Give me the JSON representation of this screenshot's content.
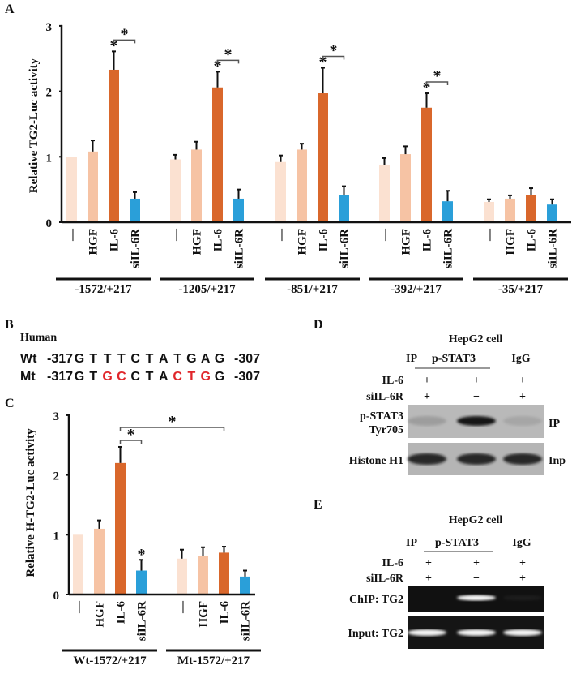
{
  "panels": {
    "a": "A",
    "b": "B",
    "c": "C",
    "d": "D",
    "e": "E"
  },
  "colors": {
    "control": "#fbe1d1",
    "hgf": "#f6c3a4",
    "il6": "#d9672b",
    "siil6r": "#2a9fd9",
    "mutation": "#e0262b"
  },
  "chart_data": [
    {
      "id": "A",
      "type": "bar",
      "ylabel": "Relative TG2-Luc activity",
      "ylim": [
        0,
        3
      ],
      "yticks": [
        "0",
        "1",
        "2",
        "3"
      ],
      "categories": [
        "—",
        "HGF",
        "IL-6",
        "siIL-6R"
      ],
      "groups": [
        {
          "name": "-1572/+217",
          "values": [
            1.0,
            1.08,
            2.33,
            0.36
          ],
          "errors": [
            0,
            0.17,
            0.28,
            0.1
          ]
        },
        {
          "name": "-1205/+217",
          "values": [
            0.96,
            1.11,
            2.06,
            0.36
          ],
          "errors": [
            0.07,
            0.12,
            0.24,
            0.14
          ]
        },
        {
          "name": "-851/+217",
          "values": [
            0.92,
            1.11,
            1.97,
            0.41
          ],
          "errors": [
            0.1,
            0.09,
            0.39,
            0.14
          ]
        },
        {
          "name": "-392/+217",
          "values": [
            0.88,
            1.04,
            1.75,
            0.32
          ],
          "errors": [
            0.1,
            0.12,
            0.22,
            0.16
          ]
        },
        {
          "name": "-35/+217",
          "values": [
            0.31,
            0.36,
            0.41,
            0.27
          ],
          "errors": [
            0.04,
            0.05,
            0.11,
            0.08
          ]
        }
      ],
      "significance": "*"
    },
    {
      "id": "C",
      "type": "bar",
      "ylabel": "Relative H-TG2-Luc activity",
      "ylim": [
        0,
        3
      ],
      "yticks": [
        "0",
        "1",
        "2",
        "3"
      ],
      "categories": [
        "—",
        "HGF",
        "IL-6",
        "siIL-6R"
      ],
      "groups": [
        {
          "name": "Wt-1572/+217",
          "values": [
            1.0,
            1.1,
            2.2,
            0.4
          ],
          "errors": [
            0,
            0.14,
            0.27,
            0.18
          ]
        },
        {
          "name": "Mt-1572/+217",
          "values": [
            0.6,
            0.65,
            0.7,
            0.3
          ],
          "errors": [
            0.15,
            0.14,
            0.1,
            0.1
          ]
        }
      ],
      "significance": "*"
    }
  ],
  "sequence": {
    "species": "Human",
    "start": "-317",
    "end": "-307",
    "rows": [
      {
        "label": "Wt",
        "bases": [
          "G",
          "T",
          "T",
          "T",
          "C",
          "T",
          "A",
          "T",
          "G",
          "A",
          "G"
        ],
        "mutated": [
          false,
          false,
          false,
          false,
          false,
          false,
          false,
          false,
          false,
          false,
          false
        ]
      },
      {
        "label": "Mt",
        "bases": [
          "G",
          "T",
          "G",
          "C",
          "C",
          "T",
          "A",
          "C",
          "T",
          "G",
          "G"
        ],
        "mutated": [
          false,
          false,
          true,
          true,
          false,
          false,
          false,
          true,
          true,
          true,
          false
        ]
      }
    ]
  },
  "blot_d": {
    "title": "HepG2 cell",
    "ip_label": "IP",
    "ip_antibody": "p-STAT3",
    "igg": "IgG",
    "rows": [
      {
        "label": "IL-6",
        "signs": [
          "+",
          "+",
          "+"
        ]
      },
      {
        "label": "siIL-6R",
        "signs": [
          "+",
          "−",
          "+"
        ]
      }
    ],
    "band1_label_1": "p-STAT3",
    "band1_label_2": "Tyr705",
    "band1_right": "IP",
    "band2_label": "Histone H1",
    "band2_right": "Inp",
    "band1_intensity": [
      0.15,
      1.0,
      0.1
    ],
    "band2_intensity": [
      0.9,
      0.9,
      0.9
    ]
  },
  "blot_e": {
    "title": "HepG2 cell",
    "ip_label": "IP",
    "ip_antibody": "p-STAT3",
    "igg": "IgG",
    "rows": [
      {
        "label": "IL-6",
        "signs": [
          "+",
          "+",
          "+"
        ]
      },
      {
        "label": "siIL-6R",
        "signs": [
          "+",
          "−",
          "+"
        ]
      }
    ],
    "gel1_label": "ChIP: TG2",
    "gel2_label": "Input: TG2",
    "gel1_intensity": [
      0,
      1.0,
      0.05
    ],
    "gel2_intensity": [
      1.0,
      1.0,
      1.0
    ]
  }
}
